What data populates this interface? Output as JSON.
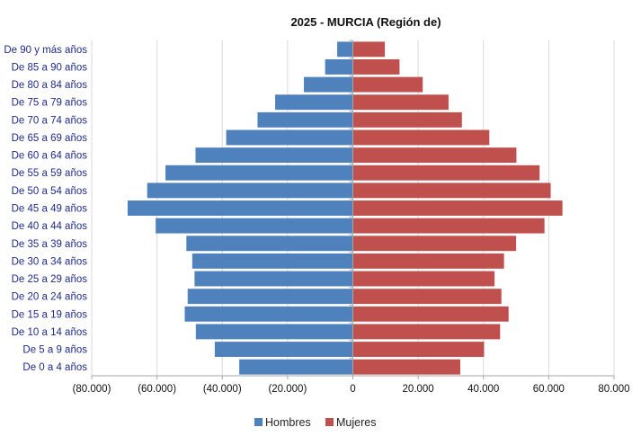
{
  "chart_data": {
    "type": "bar",
    "orientation": "horizontal",
    "title": "2025 - MURCIA (Región de)",
    "categories": [
      "De 90 y más años",
      "De 85 a 90 años",
      "De 80 a 84 años",
      "De 75 a 79 años",
      "De 70 a 74 años",
      "De 65 a 69 años",
      "De 60 a 64 años",
      "De 55 a 59 años",
      "De 50 a 54 años",
      "De 45 a 49 años",
      "De 40 a 44 años",
      "De 35 a 39 años",
      "De 30 a 34 años",
      "De 25 a 29 años",
      "De 20 a 24 años",
      "De 15 a 19 años",
      "De 10 a 14 años",
      "De 5 a 9 años",
      "De 0 a 4 años"
    ],
    "series": [
      {
        "name": "Hombres",
        "color": "#4f81bd",
        "values": [
          -4800,
          -8500,
          -15000,
          -23800,
          -29200,
          -38800,
          -48200,
          -57400,
          -63000,
          -69000,
          -60400,
          -51000,
          -49200,
          -48500,
          -50600,
          -51500,
          -48100,
          -42300,
          -34800
        ]
      },
      {
        "name": "Mujeres",
        "color": "#c0504d",
        "values": [
          9800,
          14300,
          21400,
          29300,
          33400,
          41800,
          50100,
          57200,
          60600,
          64200,
          58700,
          50000,
          46300,
          43400,
          45500,
          47700,
          45100,
          40200,
          32900
        ]
      }
    ],
    "xlim": [
      -80000,
      80000
    ],
    "xticks": [
      -80000,
      -60000,
      -40000,
      -20000,
      0,
      20000,
      40000,
      60000,
      80000
    ],
    "xtick_labels": [
      "(80.000)",
      "(60.000)",
      "(40.000)",
      "(20.000)",
      "0",
      "20.000",
      "40.000",
      "60.000",
      "80.000"
    ],
    "grid": true,
    "legend_position": "bottom"
  }
}
